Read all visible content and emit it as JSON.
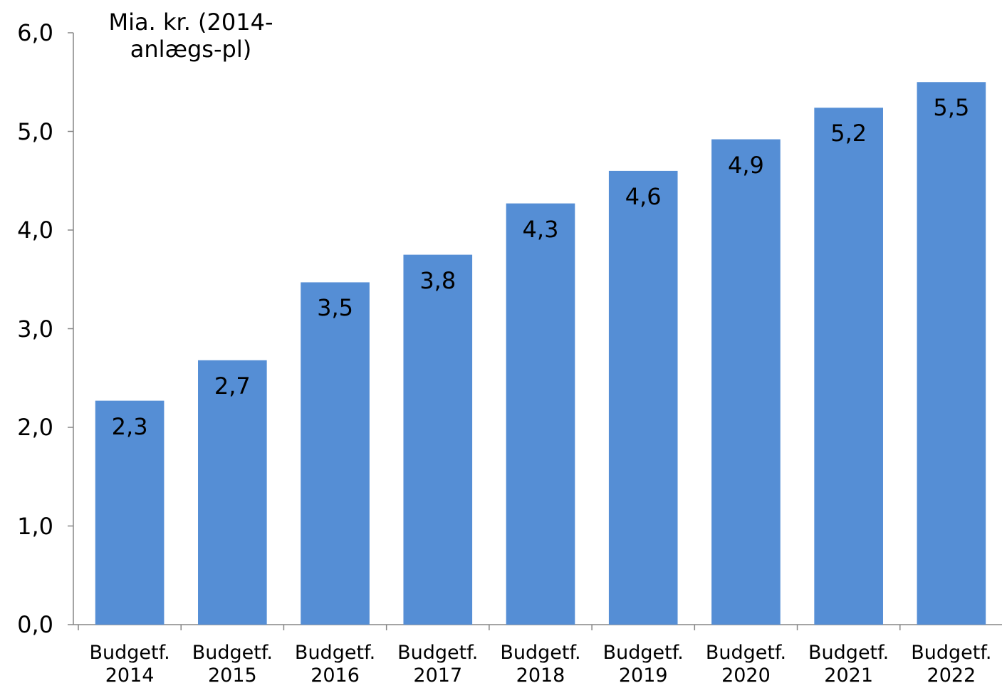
{
  "chart_data": {
    "type": "bar",
    "y_axis_label": "Mia. kr. (2014-anlægs-pl)",
    "categories": [
      "Budgetf. 2014",
      "Budgetf. 2015",
      "Budgetf. 2016",
      "Budgetf. 2017",
      "Budgetf. 2018",
      "Budgetf. 2019",
      "Budgetf. 2020",
      "Budgetf. 2021",
      "Budgetf. 2022"
    ],
    "values": [
      2.27,
      2.68,
      3.47,
      3.75,
      4.27,
      4.6,
      4.92,
      5.24,
      5.5
    ],
    "value_labels": [
      "2,3",
      "2,7",
      "3,5",
      "3,8",
      "4,3",
      "4,6",
      "4,9",
      "5,2",
      "5,5"
    ],
    "color": "#558ed5",
    "ylim": [
      0,
      6
    ],
    "yticks": [
      {
        "value": 0,
        "label": "0,0"
      },
      {
        "value": 1,
        "label": "1,0"
      },
      {
        "value": 2,
        "label": "2,0"
      },
      {
        "value": 3,
        "label": "3,0"
      },
      {
        "value": 4,
        "label": "4,0"
      },
      {
        "value": 5,
        "label": "5,0"
      },
      {
        "value": 6,
        "label": "6,0"
      }
    ],
    "grid": false
  }
}
